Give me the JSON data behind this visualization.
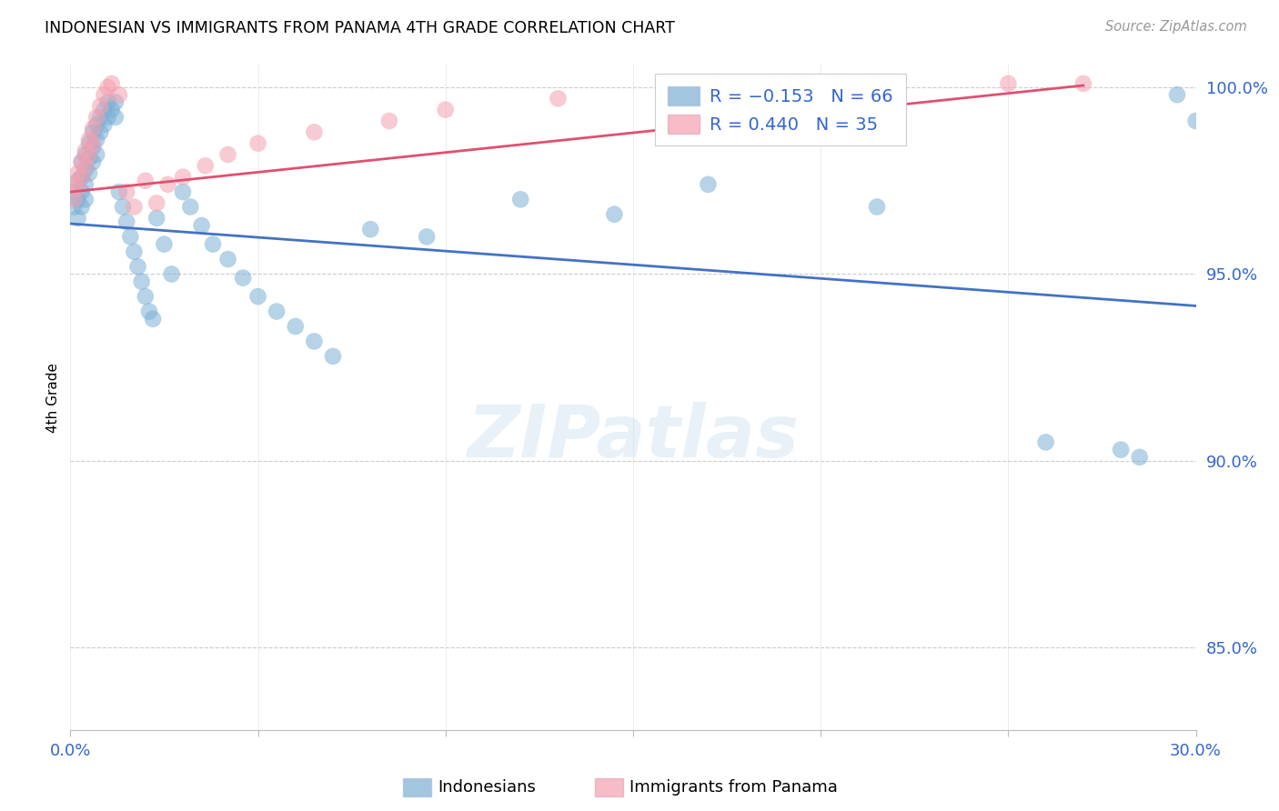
{
  "title": "INDONESIAN VS IMMIGRANTS FROM PANAMA 4TH GRADE CORRELATION CHART",
  "source": "Source: ZipAtlas.com",
  "ylabel": "4th Grade",
  "watermark": "ZIPatlas",
  "xmin": 0.0,
  "xmax": 0.3,
  "ymin": 0.828,
  "ymax": 1.006,
  "yticks": [
    0.85,
    0.9,
    0.95,
    1.0
  ],
  "ytick_labels": [
    "85.0%",
    "90.0%",
    "95.0%",
    "100.0%"
  ],
  "xticks": [
    0.0,
    0.05,
    0.1,
    0.15,
    0.2,
    0.25,
    0.3
  ],
  "xtick_labels": [
    "0.0%",
    "",
    "",
    "",
    "",
    "",
    "30.0%"
  ],
  "legend_r1": "R = −0.153",
  "legend_n1": "N = 66",
  "legend_r2": "R = 0.440",
  "legend_n2": "N = 35",
  "blue_color": "#7BAFD4",
  "pink_color": "#F4A0B0",
  "blue_line_color": "#4472C4",
  "pink_line_color": "#E05070",
  "blue_line_x": [
    0.0,
    0.3
  ],
  "blue_line_y": [
    0.9635,
    0.9415
  ],
  "pink_line_x": [
    0.0,
    0.27
  ],
  "pink_line_y": [
    0.972,
    1.0005
  ],
  "indo_x": [
    0.001,
    0.001,
    0.002,
    0.002,
    0.002,
    0.003,
    0.003,
    0.003,
    0.003,
    0.004,
    0.004,
    0.004,
    0.004,
    0.005,
    0.005,
    0.005,
    0.006,
    0.006,
    0.006,
    0.007,
    0.007,
    0.007,
    0.008,
    0.008,
    0.009,
    0.009,
    0.01,
    0.01,
    0.011,
    0.012,
    0.012,
    0.013,
    0.014,
    0.015,
    0.016,
    0.017,
    0.018,
    0.019,
    0.02,
    0.021,
    0.022,
    0.023,
    0.025,
    0.027,
    0.03,
    0.032,
    0.035,
    0.038,
    0.042,
    0.046,
    0.05,
    0.055,
    0.06,
    0.065,
    0.07,
    0.08,
    0.095,
    0.12,
    0.145,
    0.17,
    0.215,
    0.26,
    0.28,
    0.285,
    0.295,
    0.3
  ],
  "indo_y": [
    0.972,
    0.968,
    0.975,
    0.97,
    0.965,
    0.98,
    0.976,
    0.972,
    0.968,
    0.982,
    0.978,
    0.974,
    0.97,
    0.985,
    0.981,
    0.977,
    0.988,
    0.984,
    0.98,
    0.99,
    0.986,
    0.982,
    0.992,
    0.988,
    0.994,
    0.99,
    0.996,
    0.992,
    0.994,
    0.996,
    0.992,
    0.972,
    0.968,
    0.964,
    0.96,
    0.956,
    0.952,
    0.948,
    0.944,
    0.94,
    0.938,
    0.965,
    0.958,
    0.95,
    0.972,
    0.968,
    0.963,
    0.958,
    0.954,
    0.949,
    0.944,
    0.94,
    0.936,
    0.932,
    0.928,
    0.962,
    0.96,
    0.97,
    0.966,
    0.974,
    0.968,
    0.905,
    0.903,
    0.901,
    0.998,
    0.991
  ],
  "pan_x": [
    0.001,
    0.001,
    0.002,
    0.002,
    0.003,
    0.003,
    0.004,
    0.004,
    0.005,
    0.005,
    0.006,
    0.006,
    0.007,
    0.008,
    0.009,
    0.01,
    0.011,
    0.013,
    0.015,
    0.017,
    0.02,
    0.023,
    0.026,
    0.03,
    0.036,
    0.042,
    0.05,
    0.065,
    0.085,
    0.1,
    0.13,
    0.17,
    0.21,
    0.25,
    0.27
  ],
  "pan_y": [
    0.974,
    0.97,
    0.977,
    0.973,
    0.98,
    0.976,
    0.983,
    0.979,
    0.986,
    0.982,
    0.989,
    0.985,
    0.992,
    0.995,
    0.998,
    1.0,
    1.001,
    0.998,
    0.972,
    0.968,
    0.975,
    0.969,
    0.974,
    0.976,
    0.979,
    0.982,
    0.985,
    0.988,
    0.991,
    0.994,
    0.997,
    1.0,
    1.001,
    1.001,
    1.001
  ]
}
